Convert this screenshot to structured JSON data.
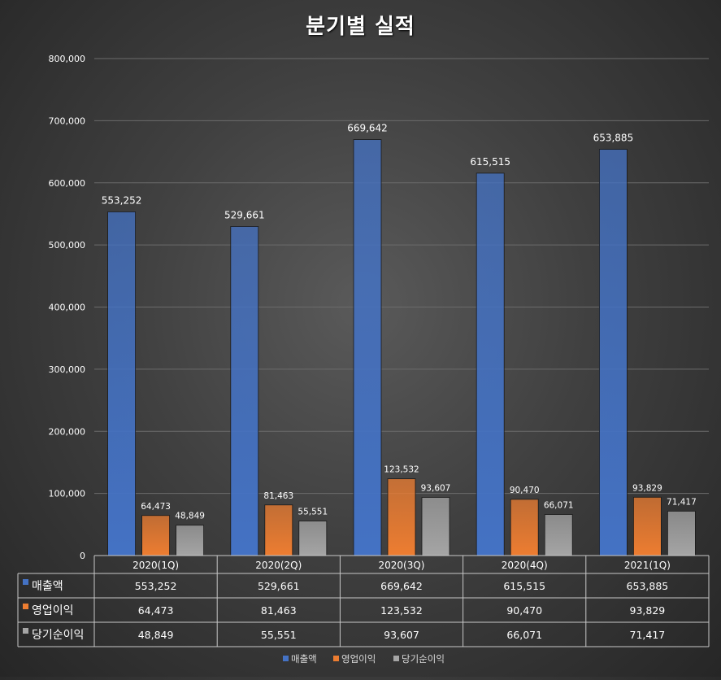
{
  "chart_data": {
    "type": "bar",
    "title": "분기별 실적",
    "categories": [
      "2020(1Q)",
      "2020(2Q)",
      "2020(3Q)",
      "2020(4Q)",
      "2021(1Q)"
    ],
    "series": [
      {
        "name": "매출액",
        "values": [
          553252,
          529661,
          669642,
          615515,
          653885
        ],
        "color": "#4472c4"
      },
      {
        "name": "영업이익",
        "values": [
          64473,
          81463,
          123532,
          90470,
          93829
        ],
        "color": "#ed7d31"
      },
      {
        "name": "당기순이익",
        "values": [
          48849,
          55551,
          93607,
          66071,
          71417
        ],
        "color": "#a5a5a5"
      }
    ],
    "ylim": [
      0,
      800000
    ],
    "yticks": [
      0,
      100000,
      200000,
      300000,
      400000,
      500000,
      600000,
      700000,
      800000
    ],
    "grid": true,
    "data_table": true,
    "legend_position": "bottom"
  }
}
